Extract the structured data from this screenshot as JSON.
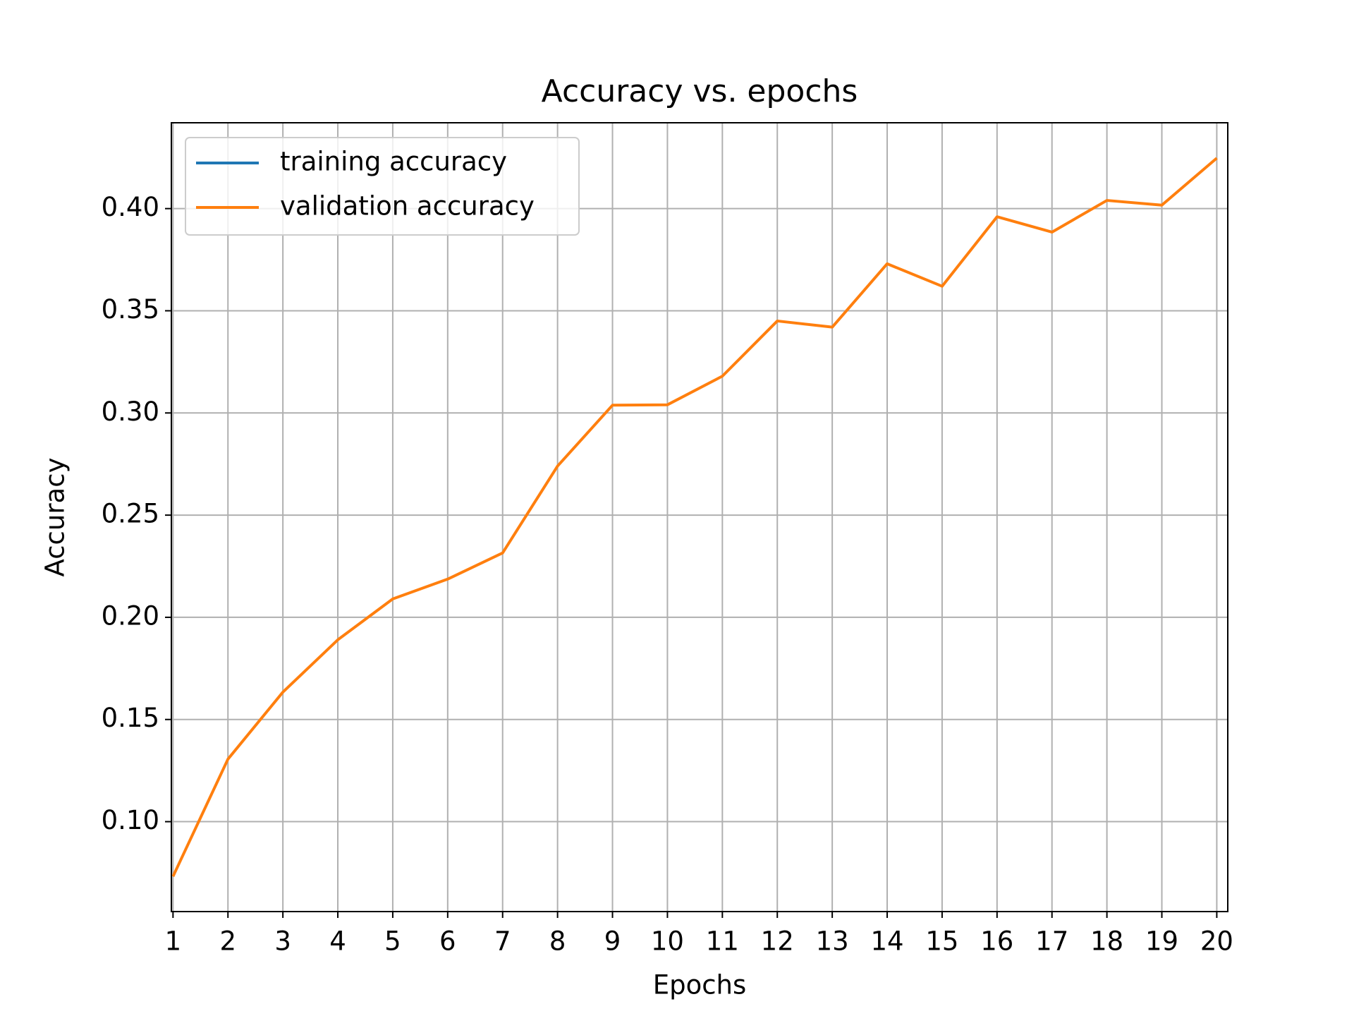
{
  "chart_data": {
    "type": "line",
    "title": "Accuracy vs. epochs",
    "xlabel": "Epochs",
    "ylabel": "Accuracy",
    "x": [
      1,
      2,
      3,
      4,
      5,
      6,
      7,
      8,
      9,
      10,
      11,
      12,
      13,
      14,
      15,
      16,
      17,
      18,
      19,
      20
    ],
    "series": [
      {
        "name": "training accuracy",
        "color": "#1f77b4",
        "values": [
          null,
          null,
          null,
          null,
          null,
          null,
          null,
          null,
          null,
          null,
          null,
          null,
          null,
          null,
          null,
          null,
          null,
          null,
          null,
          null
        ]
      },
      {
        "name": "validation accuracy",
        "color": "#ff7f0e",
        "values": [
          0.0732,
          0.1306,
          0.1634,
          0.189,
          0.209,
          0.2187,
          0.2315,
          0.274,
          0.3038,
          0.304,
          0.318,
          0.345,
          0.342,
          0.373,
          0.362,
          0.396,
          0.3885,
          0.404,
          0.4017,
          0.4247
        ]
      }
    ],
    "xlim": [
      0.97,
      20.2
    ],
    "xticks": [
      1,
      2,
      3,
      4,
      5,
      6,
      7,
      8,
      9,
      10,
      11,
      12,
      13,
      14,
      15,
      16,
      17,
      18,
      19,
      20
    ],
    "ylim": [
      0.056,
      0.442
    ],
    "yticks": [
      {
        "value": 0.1,
        "label": "0.10"
      },
      {
        "value": 0.15,
        "label": "0.15"
      },
      {
        "value": 0.2,
        "label": "0.20"
      },
      {
        "value": 0.25,
        "label": "0.25"
      },
      {
        "value": 0.3,
        "label": "0.30"
      },
      {
        "value": 0.35,
        "label": "0.35"
      },
      {
        "value": 0.4,
        "label": "0.40"
      }
    ],
    "grid": true,
    "legend": "upper left"
  }
}
